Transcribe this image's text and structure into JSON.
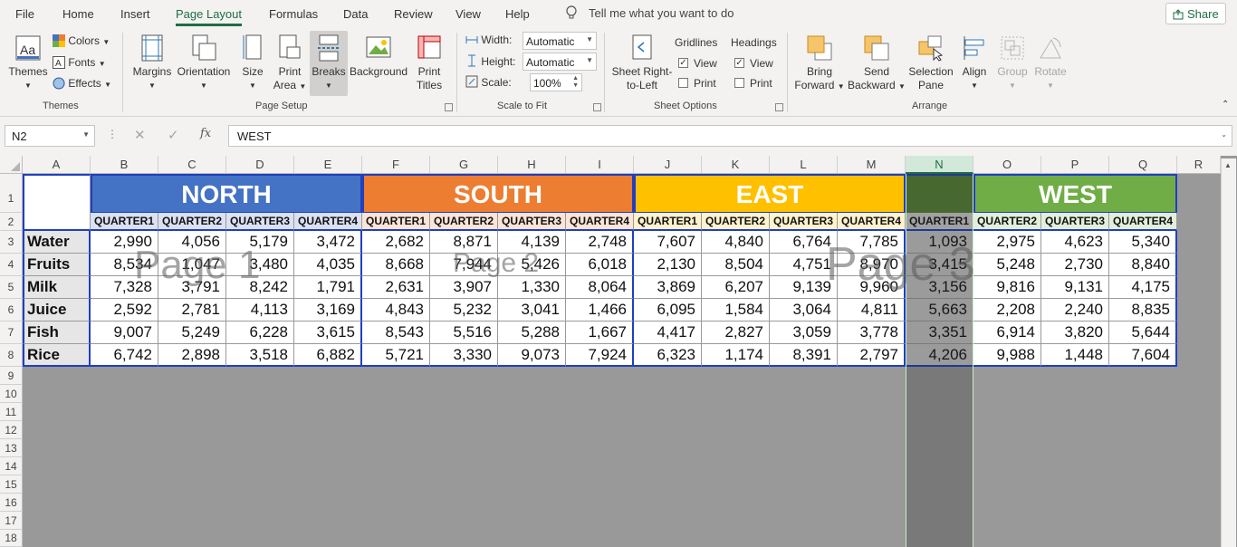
{
  "tabs": [
    "File",
    "Home",
    "Insert",
    "Page Layout",
    "Formulas",
    "Data",
    "Review",
    "View",
    "Help"
  ],
  "active_tab": "Page Layout",
  "tell_me": "Tell me what you want to do",
  "share": "Share",
  "ribbon": {
    "themes": {
      "themes": "Themes",
      "colors": "Colors",
      "fonts": "Fonts",
      "effects": "Effects",
      "group": "Themes"
    },
    "page_setup": {
      "margins": "Margins",
      "orientation": "Orientation",
      "size": "Size",
      "print_area_1": "Print",
      "print_area_2": "Area",
      "breaks": "Breaks",
      "background": "Background",
      "print_titles_1": "Print",
      "print_titles_2": "Titles",
      "group": "Page Setup"
    },
    "scale_to_fit": {
      "width_label": "Width:",
      "width_value": "Automatic",
      "height_label": "Height:",
      "height_value": "Automatic",
      "scale_label": "Scale:",
      "scale_value": "100%",
      "group": "Scale to Fit"
    },
    "sheet_options": {
      "sheet_rtl_1": "Sheet Right-",
      "sheet_rtl_2": "to-Left",
      "gridlines": "Gridlines",
      "headings": "Headings",
      "view": "View",
      "print": "Print",
      "group": "Sheet Options"
    },
    "arrange": {
      "bring_1": "Bring",
      "bring_2": "Forward",
      "send_1": "Send",
      "send_2": "Backward",
      "selection_1": "Selection",
      "selection_2": "Pane",
      "align": "Align",
      "group_btn": "Group",
      "rotate": "Rotate",
      "group": "Arrange"
    }
  },
  "formula_bar": {
    "name_box": "N2",
    "fx": "fx",
    "value": "WEST"
  },
  "columns": [
    "A",
    "B",
    "C",
    "D",
    "E",
    "F",
    "G",
    "H",
    "I",
    "J",
    "K",
    "L",
    "M",
    "N",
    "O",
    "P",
    "Q",
    "R"
  ],
  "rows": [
    "1",
    "2",
    "3",
    "4",
    "5",
    "6",
    "7",
    "8",
    "9",
    "10",
    "11",
    "12",
    "13",
    "14",
    "15",
    "16",
    "17",
    "18"
  ],
  "regions": [
    {
      "name": "NORTH",
      "color": "#4472c4",
      "quarter_fill": "#d9e1f2"
    },
    {
      "name": "SOUTH",
      "color": "#ed7d31",
      "quarter_fill": "#fce4d6"
    },
    {
      "name": "EAST",
      "color": "#ffc000",
      "quarter_fill": "#fff2cc"
    },
    {
      "name": "WEST",
      "color": "#70ad47",
      "quarter_fill": "#e2efda"
    }
  ],
  "quarters": [
    "QUARTER1",
    "QUARTER2",
    "QUARTER3",
    "QUARTER4"
  ],
  "products": [
    "Water",
    "Fruits",
    "Milk",
    "Juice",
    "Fish",
    "Rice"
  ],
  "values": [
    [
      "2,990",
      "4,056",
      "5,179",
      "3,472",
      "2,682",
      "8,871",
      "4,139",
      "2,748",
      "7,607",
      "4,840",
      "6,764",
      "7,785",
      "1,093",
      "2,975",
      "4,623",
      "5,340"
    ],
    [
      "8,534",
      "1,047",
      "3,480",
      "4,035",
      "8,668",
      "7,944",
      "5,426",
      "6,018",
      "2,130",
      "8,504",
      "4,751",
      "8,970",
      "3,415",
      "5,248",
      "2,730",
      "8,840"
    ],
    [
      "7,328",
      "3,791",
      "8,242",
      "1,791",
      "2,631",
      "3,907",
      "1,330",
      "8,064",
      "3,869",
      "6,207",
      "9,139",
      "9,960",
      "3,156",
      "9,816",
      "9,131",
      "4,175"
    ],
    [
      "2,592",
      "2,781",
      "4,113",
      "3,169",
      "4,843",
      "5,232",
      "3,041",
      "1,466",
      "6,095",
      "1,584",
      "3,064",
      "4,811",
      "5,663",
      "2,208",
      "2,240",
      "8,835"
    ],
    [
      "9,007",
      "5,249",
      "6,228",
      "3,615",
      "8,543",
      "5,516",
      "5,288",
      "1,667",
      "4,417",
      "2,827",
      "3,059",
      "3,778",
      "3,351",
      "6,914",
      "3,820",
      "5,644"
    ],
    [
      "6,742",
      "2,898",
      "3,518",
      "6,882",
      "5,721",
      "3,330",
      "9,073",
      "7,924",
      "6,323",
      "1,174",
      "8,391",
      "2,797",
      "4,206",
      "9,988",
      "1,448",
      "7,604"
    ]
  ],
  "watermarks": [
    "Page 1",
    "Page 2",
    "Page 3"
  ],
  "colors": {
    "accent": "#1e6e42",
    "selected_col": "#548235",
    "page_bg": "#999999"
  }
}
